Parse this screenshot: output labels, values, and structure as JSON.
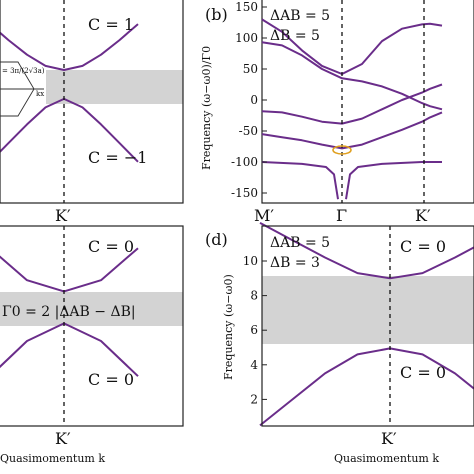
{
  "colors": {
    "curve": "#6a2d8a",
    "gap": "#d3d3d3",
    "frame": "#222222",
    "marker": "#e0a020"
  },
  "chart_data": [
    {
      "panel": "a",
      "type": "line",
      "x_tick_labels": [
        "K′"
      ],
      "annotations": {
        "upper": "C = 1",
        "lower": "C = −1"
      },
      "inset_labels": [
        "= 3π/(2√3a)",
        "kx"
      ],
      "series": [
        {
          "k": [
            -1.0,
            -0.75,
            -0.5,
            -0.25,
            0.0,
            0.25,
            0.5,
            0.75,
            1.0
          ],
          "omega": [
            1.85,
            1.38,
            0.95,
            0.62,
            0.5,
            0.62,
            0.95,
            1.38,
            1.85
          ]
        },
        {
          "k": [
            -1.0,
            -0.75,
            -0.5,
            -0.25,
            0.0,
            0.25,
            0.5,
            0.75,
            1.0
          ],
          "omega": [
            -2.2,
            -1.65,
            -1.1,
            -0.6,
            -0.35,
            -0.6,
            -1.1,
            -1.65,
            -2.2
          ]
        }
      ],
      "gap": [
        -0.35,
        0.5
      ]
    },
    {
      "panel": "b",
      "type": "line",
      "panel_label": "(b)",
      "params": [
        "ΔAB = 5",
        "ΔB = 5"
      ],
      "ylabel": "Frequency (ω−ω0)/Γ0",
      "ylim": [
        -160,
        160
      ],
      "y_ticks": [
        150,
        100,
        50,
        0,
        -50,
        -100,
        -150
      ],
      "x_tick_labels": [
        "M′",
        "Γ",
        "K′"
      ],
      "x_ticks": [
        0,
        1,
        2
      ],
      "series": [
        {
          "x": [
            0,
            0.25,
            0.5,
            0.75,
            1.0,
            1.25,
            1.5,
            1.75,
            2.0,
            2.1,
            2.25
          ],
          "y": [
            130,
            110,
            80,
            55,
            42,
            58,
            95,
            115,
            122,
            123,
            120
          ]
        },
        {
          "x": [
            0,
            0.25,
            0.5,
            0.75,
            1.0,
            1.25,
            1.5,
            1.75,
            2.0,
            2.1,
            2.25
          ],
          "y": [
            93,
            88,
            72,
            50,
            35,
            30,
            22,
            10,
            -5,
            -10,
            -15
          ]
        },
        {
          "x": [
            0,
            0.25,
            0.5,
            0.75,
            1.0,
            1.25,
            1.5,
            1.75,
            2.0,
            2.1,
            2.25
          ],
          "y": [
            -18,
            -20,
            -27,
            -35,
            -38,
            -30,
            -15,
            0,
            12,
            18,
            25
          ]
        },
        {
          "x": [
            0,
            0.25,
            0.5,
            0.75,
            1.0,
            1.25,
            1.5,
            1.75,
            2.0,
            2.1,
            2.25
          ],
          "y": [
            -55,
            -60,
            -65,
            -72,
            -78,
            -72,
            -60,
            -48,
            -35,
            -28,
            -20
          ]
        },
        {
          "x": [
            0,
            0.5,
            0.8,
            0.9,
            0.95
          ],
          "y": [
            -100,
            -103,
            -108,
            -120,
            -160
          ]
        },
        {
          "x": [
            1.05,
            1.1,
            1.2,
            1.5,
            2.0,
            2.25
          ],
          "y": [
            -160,
            -120,
            -108,
            -103,
            -100,
            -100
          ]
        }
      ]
    },
    {
      "panel": "c",
      "type": "line",
      "x_tick_labels": [
        "K′"
      ],
      "xlabel": "Quasimomentum k",
      "annotations": {
        "upper": "C = 0",
        "lower": "C = 0",
        "gap_formula": "Γ0 = 2 |ΔAB − ΔB|"
      },
      "series": [
        {
          "k": [
            -1.0,
            -0.5,
            0.0,
            0.5,
            1.0
          ],
          "omega": [
            1.9,
            0.9,
            0.55,
            0.9,
            1.9
          ]
        },
        {
          "k": [
            -1.0,
            -0.5,
            0.0,
            0.5,
            1.0
          ],
          "omega": [
            -2.1,
            -1.0,
            -0.45,
            -1.0,
            -2.1
          ]
        }
      ],
      "gap": [
        -0.45,
        0.55
      ]
    },
    {
      "panel": "d",
      "type": "line",
      "panel_label": "(d)",
      "params": [
        "ΔAB = 5",
        "ΔB = 3"
      ],
      "ylabel": "Frequency (ω−ω0)",
      "xlabel": "Quasimomentum k",
      "ylim": [
        0.5,
        12
      ],
      "y_ticks": [
        10,
        8,
        6,
        4,
        2
      ],
      "x_tick_labels": [
        "K′"
      ],
      "annotations": {
        "upper": "C = 0",
        "lower": "C = 0"
      },
      "series": [
        {
          "k": [
            -1.0,
            -0.75,
            -0.5,
            -0.25,
            0.0,
            0.25,
            0.5,
            0.75,
            1.0
          ],
          "y": [
            12.2,
            11.2,
            10.2,
            9.3,
            9.0,
            9.3,
            10.2,
            11.2,
            12.2
          ]
        },
        {
          "k": [
            -1.0,
            -0.75,
            -0.5,
            -0.25,
            0.0,
            0.25,
            0.5,
            0.75,
            1.0
          ],
          "y": [
            0.5,
            2.0,
            3.5,
            4.6,
            4.95,
            4.6,
            3.5,
            2.0,
            0.5
          ]
        }
      ],
      "gap": [
        5.0,
        9.0
      ]
    }
  ]
}
